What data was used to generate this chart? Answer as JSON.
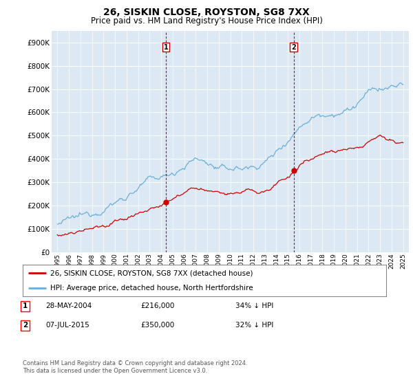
{
  "title": "26, SISKIN CLOSE, ROYSTON, SG8 7XX",
  "subtitle": "Price paid vs. HM Land Registry's House Price Index (HPI)",
  "hpi_color": "#6baed6",
  "price_color": "#cc0000",
  "vline_color": "#cc0000",
  "plot_bg": "#dce9f5",
  "legend_label_price": "26, SISKIN CLOSE, ROYSTON, SG8 7XX (detached house)",
  "legend_label_hpi": "HPI: Average price, detached house, North Hertfordshire",
  "annotation1_label": "1",
  "annotation1_date": "28-MAY-2004",
  "annotation1_price": "£216,000",
  "annotation1_pct": "34% ↓ HPI",
  "annotation2_label": "2",
  "annotation2_date": "07-JUL-2015",
  "annotation2_price": "£350,000",
  "annotation2_pct": "32% ↓ HPI",
  "footer": "Contains HM Land Registry data © Crown copyright and database right 2024.\nThis data is licensed under the Open Government Licence v3.0.",
  "ylim": [
    0,
    950000
  ],
  "yticks": [
    0,
    100000,
    200000,
    300000,
    400000,
    500000,
    600000,
    700000,
    800000,
    900000
  ],
  "ytick_labels": [
    "£0",
    "£100K",
    "£200K",
    "£300K",
    "£400K",
    "£500K",
    "£600K",
    "£700K",
    "£800K",
    "£900K"
  ],
  "vline1_x": 2004.41,
  "vline2_x": 2015.51,
  "marker1_x": 2004.41,
  "marker1_y": 216000,
  "marker2_x": 2015.51,
  "marker2_y": 350000,
  "xlim_start": 1994.5,
  "xlim_end": 2025.5
}
